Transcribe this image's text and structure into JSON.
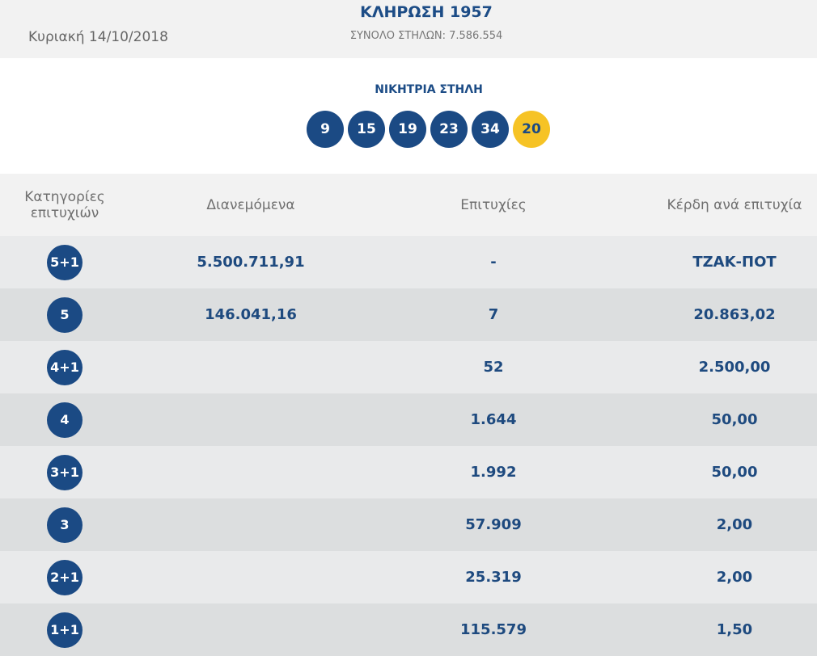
{
  "header": {
    "date": "Κυριακή 14/10/2018",
    "title": "ΚΛΗΡΩΣΗ 1957",
    "subtitle": "ΣΥΝΟΛΟ ΣΤΗΛΩΝ: 7.586.554"
  },
  "winning": {
    "label": "ΝΙΚΗΤΡΙΑ ΣΤΗΛΗ",
    "numbers": [
      9,
      15,
      19,
      23,
      34
    ],
    "bonus": 20
  },
  "table": {
    "columns": [
      "Κατηγορίες επιτυχιών",
      "Διανεμόμενα",
      "Επιτυχίες",
      "Κέρδη ανά επιτυχία"
    ],
    "rows": [
      {
        "category": "5+1",
        "distributed": "5.500.711,91",
        "winners": "-",
        "prize": "ΤΖΑΚ-ΠΟΤ"
      },
      {
        "category": "5",
        "distributed": "146.041,16",
        "winners": "7",
        "prize": "20.863,02"
      },
      {
        "category": "4+1",
        "winners": "52",
        "prize": "2.500,00"
      },
      {
        "category": "4",
        "winners": "1.644",
        "prize": "50,00"
      },
      {
        "category": "3+1",
        "winners": "1.992",
        "prize": "50,00"
      },
      {
        "category": "3",
        "winners": "57.909",
        "prize": "2,00"
      },
      {
        "category": "2+1",
        "winners": "25.319",
        "prize": "2,00"
      },
      {
        "category": "1+1",
        "winners": "115.579",
        "prize": "1,50"
      }
    ]
  }
}
